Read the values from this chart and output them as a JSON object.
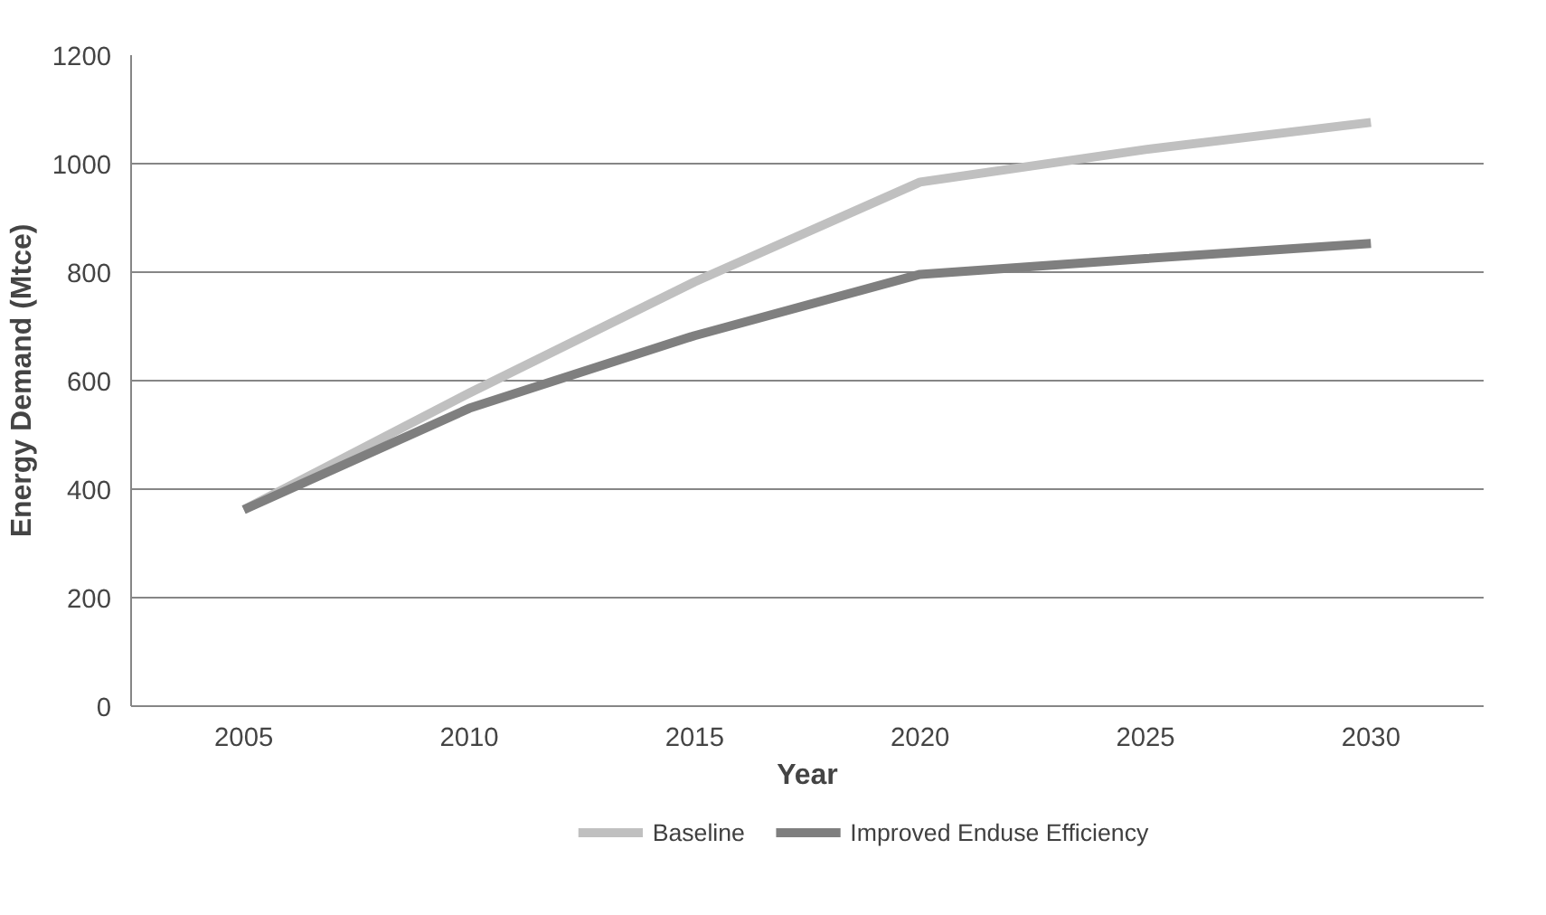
{
  "chart_data": {
    "type": "line",
    "xlabel": "Year",
    "ylabel": "Energy Demand (Mtce)",
    "x": [
      2005,
      2010,
      2015,
      2020,
      2025,
      2030
    ],
    "series": [
      {
        "name": "Baseline",
        "color": "#c0c0c0",
        "values": [
          362,
          577,
          782,
          966,
          1026,
          1076
        ]
      },
      {
        "name": "Improved Enduse Efficiency",
        "color": "#7f7f7f",
        "values": [
          362,
          549,
          683,
          796,
          825,
          853
        ]
      }
    ],
    "xlim": [
      2002.5,
      2032.5
    ],
    "xticks": [
      2005,
      2010,
      2015,
      2020,
      2025,
      2030
    ],
    "ylim": [
      0,
      1200
    ],
    "yticks": [
      0,
      200,
      400,
      600,
      800,
      1000,
      1200
    ],
    "grid": "y",
    "legend": "bottom",
    "marker": "none",
    "line_style": "solid"
  }
}
